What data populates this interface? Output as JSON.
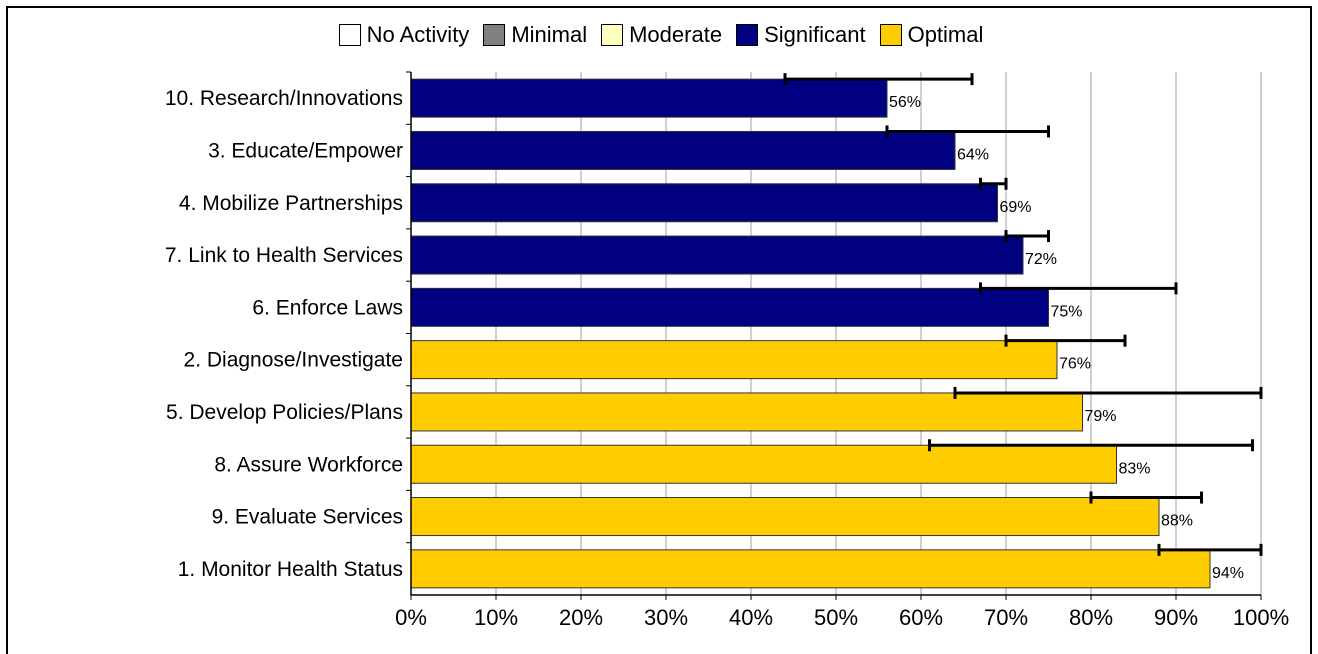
{
  "legend": [
    {
      "label": "No Activity",
      "color": "#ffffff"
    },
    {
      "label": "Minimal",
      "color": "#808080"
    },
    {
      "label": "Moderate",
      "color": "#ffffc0"
    },
    {
      "label": "Significant",
      "color": "#000080"
    },
    {
      "label": "Optimal",
      "color": "#ffcc00"
    }
  ],
  "chart_data": {
    "type": "bar",
    "orientation": "horizontal",
    "grid": true,
    "legend_placement": "top-center",
    "xlim": [
      0,
      100
    ],
    "x_ticks": [
      "0%",
      "10%",
      "20%",
      "30%",
      "40%",
      "50%",
      "60%",
      "70%",
      "80%",
      "90%",
      "100%"
    ],
    "categories": [
      "10.  Research/Innovations",
      "3.  Educate/Empower",
      "4.  Mobilize Partnerships",
      "7.  Link to Health Services",
      "6.  Enforce Laws",
      "2.  Diagnose/Investigate",
      "5.  Develop Policies/Plans",
      "8.  Assure Workforce",
      "9.  Evaluate Services",
      "1.  Monitor Health Status"
    ],
    "values": [
      56,
      64,
      69,
      72,
      75,
      76,
      79,
      83,
      88,
      94
    ],
    "value_labels": [
      "56%",
      "64%",
      "69%",
      "72%",
      "75%",
      "76%",
      "79%",
      "83%",
      "88%",
      "94%"
    ],
    "levels": [
      "Significant",
      "Significant",
      "Significant",
      "Significant",
      "Significant",
      "Optimal",
      "Optimal",
      "Optimal",
      "Optimal",
      "Optimal"
    ],
    "error_ranges": [
      [
        44,
        66
      ],
      [
        56,
        75
      ],
      [
        67,
        70
      ],
      [
        70,
        75
      ],
      [
        67,
        90
      ],
      [
        70,
        84
      ],
      [
        64,
        100
      ],
      [
        61,
        99
      ],
      [
        80,
        93
      ],
      [
        88,
        100
      ]
    ]
  }
}
